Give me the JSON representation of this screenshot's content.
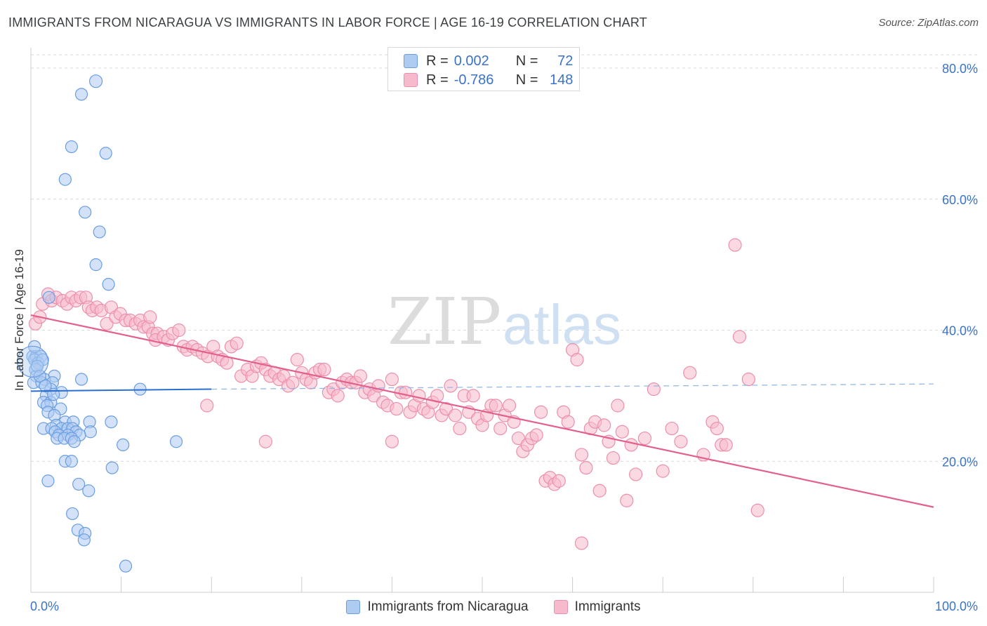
{
  "title": "IMMIGRANTS FROM NICARAGUA VS IMMIGRANTS IN LABOR FORCE | AGE 16-19 CORRELATION CHART",
  "source": "Source: ZipAtlas.com",
  "watermark": {
    "zip": "ZIP",
    "atlas": "atlas"
  },
  "legend_top": {
    "rows": [
      {
        "r_label": "R =",
        "r_value": "0.002",
        "n_label": "N =",
        "n_value": "72"
      },
      {
        "r_label": "R =",
        "r_value": "-0.786",
        "n_label": "N =",
        "n_value": "148"
      }
    ]
  },
  "colors": {
    "blue_fill": "#aecbf2",
    "blue_stroke": "#6a9ee0",
    "blue_line": "#2a6fcf",
    "pink_fill": "#f7b9cc",
    "pink_stroke": "#ec8fab",
    "pink_line": "#e35f8d",
    "grid": "#d9d9d9",
    "axis_text": "#3b73c8"
  },
  "chart_data": {
    "type": "scatter",
    "title": "IMMIGRANTS FROM NICARAGUA VS IMMIGRANTS IN LABOR FORCE | AGE 16-19 CORRELATION CHART",
    "xlabel": "",
    "ylabel": "In Labor Force | Age 16-19",
    "xlim": [
      0,
      100
    ],
    "ylim": [
      0,
      80
    ],
    "x_tick_labels": [
      "0.0%",
      "100.0%"
    ],
    "y_ticks": [
      20,
      40,
      60,
      80
    ],
    "y_tick_labels": [
      "20.0%",
      "40.0%",
      "60.0%",
      "80.0%"
    ],
    "grid": true,
    "legend_position": "bottom",
    "series": [
      {
        "name": "Immigrants from Nicaragua",
        "color": "#aecbf2",
        "points": [
          [
            7.2,
            78
          ],
          [
            5.6,
            76
          ],
          [
            4.5,
            68
          ],
          [
            8.3,
            67
          ],
          [
            3.8,
            63
          ],
          [
            6.0,
            58
          ],
          [
            7.6,
            55
          ],
          [
            7.2,
            50
          ],
          [
            8.6,
            47
          ],
          [
            2.0,
            45
          ],
          [
            0.2,
            36
          ],
          [
            0.6,
            36
          ],
          [
            1.1,
            36
          ],
          [
            0.4,
            35.5
          ],
          [
            0.8,
            35
          ],
          [
            1.3,
            35.5
          ],
          [
            0.5,
            34
          ],
          [
            2.6,
            33
          ],
          [
            0.6,
            33
          ],
          [
            1.5,
            32.5
          ],
          [
            0.3,
            32
          ],
          [
            2.4,
            32
          ],
          [
            1.2,
            32
          ],
          [
            5.6,
            32.5
          ],
          [
            2.2,
            31
          ],
          [
            3.4,
            30.5
          ],
          [
            1.7,
            30
          ],
          [
            12.1,
            31
          ],
          [
            1.4,
            29
          ],
          [
            2.2,
            29
          ],
          [
            1.8,
            28.5
          ],
          [
            3.3,
            28
          ],
          [
            1.9,
            27.5
          ],
          [
            2.6,
            27
          ],
          [
            6.5,
            26
          ],
          [
            8.9,
            26
          ],
          [
            3.8,
            26
          ],
          [
            4.7,
            26
          ],
          [
            2.8,
            25.5
          ],
          [
            3.4,
            25
          ],
          [
            1.4,
            25
          ],
          [
            2.3,
            25
          ],
          [
            4.1,
            25
          ],
          [
            4.6,
            25
          ],
          [
            2.7,
            24.5
          ],
          [
            5.0,
            24.5
          ],
          [
            6.6,
            24.5
          ],
          [
            3.1,
            24
          ],
          [
            4.1,
            24
          ],
          [
            5.4,
            24
          ],
          [
            2.9,
            23.5
          ],
          [
            3.7,
            23.5
          ],
          [
            4.5,
            23.5
          ],
          [
            4.8,
            23
          ],
          [
            16.1,
            23
          ],
          [
            10.2,
            22.5
          ],
          [
            3.8,
            20
          ],
          [
            4.5,
            20
          ],
          [
            9.0,
            19
          ],
          [
            1.9,
            17
          ],
          [
            5.3,
            16.5
          ],
          [
            6.4,
            15.5
          ],
          [
            4.6,
            12
          ],
          [
            5.2,
            9.5
          ],
          [
            6.0,
            9
          ],
          [
            5.9,
            8
          ],
          [
            10.5,
            4
          ],
          [
            0.4,
            37.5
          ],
          [
            0.7,
            34.5
          ],
          [
            1.0,
            33
          ],
          [
            1.6,
            31.5
          ],
          [
            2.5,
            30.2
          ]
        ]
      },
      {
        "name": "Immigrants",
        "color": "#f7b9cc",
        "points": [
          [
            0.5,
            41
          ],
          [
            1.0,
            42
          ],
          [
            1.3,
            44
          ],
          [
            1.9,
            45.5
          ],
          [
            2.3,
            44.5
          ],
          [
            2.8,
            45
          ],
          [
            3.5,
            44.5
          ],
          [
            4.0,
            44
          ],
          [
            4.5,
            45
          ],
          [
            5.0,
            44.5
          ],
          [
            5.5,
            45
          ],
          [
            6.1,
            45
          ],
          [
            6.4,
            43.5
          ],
          [
            6.8,
            43
          ],
          [
            7.3,
            43.5
          ],
          [
            7.8,
            43
          ],
          [
            8.4,
            41
          ],
          [
            8.9,
            43.5
          ],
          [
            9.4,
            42
          ],
          [
            9.9,
            42.5
          ],
          [
            10.5,
            41.5
          ],
          [
            11.0,
            41.5
          ],
          [
            11.6,
            41
          ],
          [
            12.1,
            41.5
          ],
          [
            12.5,
            40.5
          ],
          [
            13.0,
            40.5
          ],
          [
            13.5,
            39.5
          ],
          [
            14.0,
            39.5
          ],
          [
            13.2,
            42
          ],
          [
            13.8,
            38.5
          ],
          [
            14.7,
            39
          ],
          [
            15.2,
            38.5
          ],
          [
            15.7,
            39.5
          ],
          [
            16.4,
            40
          ],
          [
            16.9,
            37.5
          ],
          [
            17.3,
            37
          ],
          [
            17.9,
            37.5
          ],
          [
            18.4,
            37
          ],
          [
            19.0,
            36.5
          ],
          [
            19.6,
            36
          ],
          [
            20.2,
            37.5
          ],
          [
            20.7,
            36
          ],
          [
            21.2,
            35.5
          ],
          [
            21.7,
            35
          ],
          [
            22.2,
            37.5
          ],
          [
            22.8,
            38
          ],
          [
            23.3,
            33
          ],
          [
            24.0,
            34
          ],
          [
            24.5,
            33
          ],
          [
            25.0,
            34.5
          ],
          [
            25.5,
            35
          ],
          [
            26.0,
            34
          ],
          [
            26.5,
            33
          ],
          [
            27.0,
            33.5
          ],
          [
            27.5,
            32.5
          ],
          [
            28.0,
            33
          ],
          [
            28.5,
            31.5
          ],
          [
            29.0,
            32
          ],
          [
            29.5,
            35.5
          ],
          [
            30.0,
            33.5
          ],
          [
            30.5,
            32.5
          ],
          [
            31.0,
            32
          ],
          [
            31.5,
            33.5
          ],
          [
            32.0,
            34
          ],
          [
            32.5,
            34
          ],
          [
            33.0,
            30.5
          ],
          [
            33.5,
            31
          ],
          [
            34.0,
            30
          ],
          [
            34.5,
            32
          ],
          [
            35.0,
            32.5
          ],
          [
            35.5,
            32
          ],
          [
            36.0,
            32
          ],
          [
            36.5,
            33
          ],
          [
            37.0,
            30.5
          ],
          [
            37.5,
            31
          ],
          [
            38.0,
            30
          ],
          [
            38.5,
            31.5
          ],
          [
            39.0,
            29
          ],
          [
            39.5,
            28.5
          ],
          [
            40.0,
            32.5
          ],
          [
            40.5,
            28
          ],
          [
            41.0,
            30.5
          ],
          [
            41.5,
            30.5
          ],
          [
            42.0,
            27.5
          ],
          [
            42.5,
            28.5
          ],
          [
            43.0,
            30
          ],
          [
            43.5,
            28
          ],
          [
            44.0,
            27.5
          ],
          [
            44.5,
            29
          ],
          [
            45.0,
            30
          ],
          [
            45.5,
            27
          ],
          [
            46.0,
            28
          ],
          [
            46.5,
            31.5
          ],
          [
            47.0,
            27
          ],
          [
            47.5,
            25
          ],
          [
            48.0,
            30
          ],
          [
            48.5,
            27.5
          ],
          [
            49.0,
            30
          ],
          [
            49.5,
            26.5
          ],
          [
            50.0,
            25.5
          ],
          [
            50.5,
            27
          ],
          [
            51.0,
            28.5
          ],
          [
            51.5,
            28.5
          ],
          [
            52.0,
            25
          ],
          [
            52.5,
            27
          ],
          [
            53.0,
            28.5
          ],
          [
            53.5,
            26
          ],
          [
            54.0,
            23.5
          ],
          [
            54.5,
            21.5
          ],
          [
            55.0,
            22.5
          ],
          [
            55.5,
            23.5
          ],
          [
            56.0,
            24
          ],
          [
            56.5,
            27.5
          ],
          [
            57.0,
            17
          ],
          [
            57.5,
            17.5
          ],
          [
            58.0,
            16.5
          ],
          [
            58.5,
            17
          ],
          [
            59.0,
            27.5
          ],
          [
            59.5,
            26
          ],
          [
            60.0,
            37
          ],
          [
            60.5,
            35.5
          ],
          [
            61.0,
            21
          ],
          [
            61.5,
            19
          ],
          [
            62.0,
            25
          ],
          [
            62.5,
            26
          ],
          [
            63.0,
            15.5
          ],
          [
            63.5,
            25.5
          ],
          [
            64.0,
            23
          ],
          [
            64.5,
            20.5
          ],
          [
            65.0,
            28.5
          ],
          [
            65.5,
            24.5
          ],
          [
            66.0,
            14
          ],
          [
            66.5,
            22.5
          ],
          [
            67.0,
            18
          ],
          [
            68.0,
            23.5
          ],
          [
            69.0,
            31
          ],
          [
            70.0,
            18.5
          ],
          [
            71.0,
            25
          ],
          [
            72.0,
            23
          ],
          [
            73.0,
            33.5
          ],
          [
            74.5,
            21
          ],
          [
            75.5,
            26
          ],
          [
            76.0,
            25
          ],
          [
            76.5,
            22.5
          ],
          [
            77.0,
            22.5
          ],
          [
            78.0,
            53
          ],
          [
            78.5,
            39
          ],
          [
            79.5,
            32.5
          ],
          [
            80.5,
            12.5
          ],
          [
            26.0,
            23
          ],
          [
            19.5,
            28.5
          ],
          [
            61.0,
            7.5
          ],
          [
            40.0,
            23
          ]
        ]
      }
    ],
    "trend_lines": [
      {
        "series": "Immigrants from Nicaragua",
        "solid": [
          [
            0,
            30.7
          ],
          [
            20,
            31.0
          ]
        ],
        "dashed": [
          [
            20,
            31.0
          ],
          [
            100,
            31.8
          ]
        ]
      },
      {
        "series": "Immigrants",
        "solid": [
          [
            0,
            42.3
          ],
          [
            100,
            13.0
          ]
        ]
      }
    ]
  },
  "bottom_legend": [
    "Immigrants from Nicaragua",
    "Immigrants"
  ],
  "axis": {
    "x_left": "0.0%",
    "x_right": "100.0%"
  }
}
